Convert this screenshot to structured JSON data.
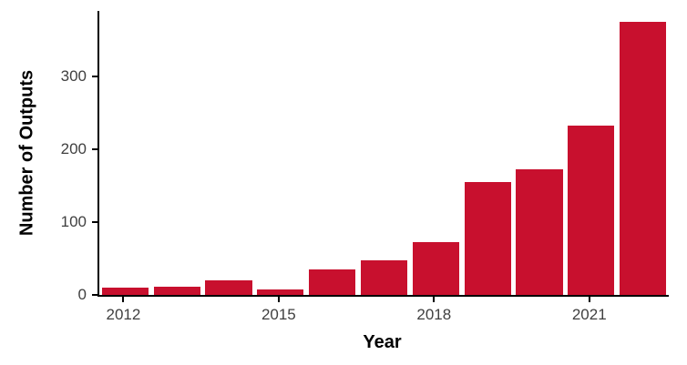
{
  "chart_data": {
    "type": "bar",
    "title": "",
    "xlabel": "Year",
    "ylabel": "Number of Outputs",
    "categories": [
      2012,
      2013,
      2014,
      2015,
      2016,
      2017,
      2018,
      2019,
      2020,
      2021,
      2022
    ],
    "values": [
      10,
      11,
      20,
      8,
      35,
      48,
      73,
      155,
      173,
      232,
      375
    ],
    "ylim": [
      0,
      390
    ],
    "yticks": [
      0,
      100,
      200,
      300
    ],
    "xticks": [
      2012,
      2015,
      2018,
      2021
    ],
    "bar_color": "#C8102E",
    "axis_color": "#000000",
    "tick_label_color": "#404040",
    "grid": false,
    "legend": false,
    "bar_width_fraction": 0.9
  }
}
